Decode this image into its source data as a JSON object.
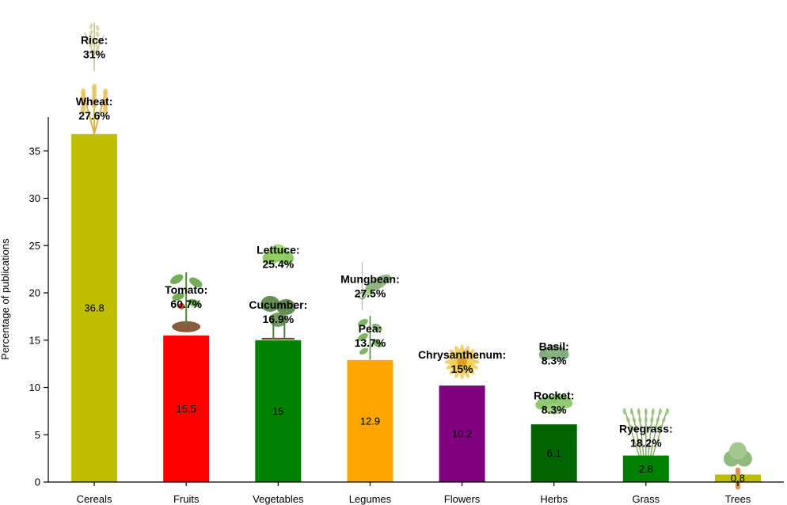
{
  "chart_data": {
    "type": "bar",
    "title": "",
    "xlabel": "",
    "ylabel": "Percentage of publications",
    "ylim": [
      0,
      38.5
    ],
    "yticks": [
      0,
      5,
      10,
      15,
      20,
      25,
      30,
      35
    ],
    "grid": false,
    "categories": [
      "Cereals",
      "Fruits",
      "Vegetables",
      "Legumes",
      "Flowers",
      "Herbs",
      "Grass",
      "Trees"
    ],
    "values": [
      36.8,
      15.5,
      15,
      12.9,
      10.2,
      6.1,
      2.8,
      0.8
    ],
    "value_labels": [
      "36.8",
      "15.5",
      "15",
      "12.9",
      "10.2",
      "6.1",
      "2.8",
      "0.8"
    ],
    "colors": [
      "#bfbf00",
      "#ff0000",
      "#008000",
      "#ffa500",
      "#800080",
      "#006400",
      "#008000",
      "#bfbf00"
    ],
    "annotations": [
      {
        "category": "Cereals",
        "crop": "Wheat:",
        "pct": "27.6%",
        "icon": "wheat-icon",
        "y": 39.5
      },
      {
        "category": "Cereals",
        "crop": "Rice:",
        "pct": "31%",
        "icon": "rice-icon",
        "y": 46.0
      },
      {
        "category": "Fruits",
        "crop": "Tomato:",
        "pct": "60.7%",
        "icon": "tomato-plant-icon",
        "y": 19.6
      },
      {
        "category": "Vegetables",
        "crop": "Cucumber:",
        "pct": "16.9%",
        "icon": "cucumber-plant-icon",
        "y": 18.0
      },
      {
        "category": "Vegetables",
        "crop": "Lettuce:",
        "pct": "25.4%",
        "icon": "lettuce-icon",
        "y": 23.8
      },
      {
        "category": "Legumes",
        "crop": "Pea:",
        "pct": "13.7%",
        "icon": "pea-plant-icon",
        "y": 15.5
      },
      {
        "category": "Legumes",
        "crop": "Mungbean:",
        "pct": "27.5%",
        "icon": "mungbean-pod-icon",
        "y": 20.7
      },
      {
        "category": "Flowers",
        "crop": "Chrysanthenum:",
        "pct": "15%",
        "icon": "chrysanthemum-icon",
        "y": 12.7
      },
      {
        "category": "Herbs",
        "crop": "Rocket:",
        "pct": "8.3%",
        "icon": "rocket-leaf-icon",
        "y": 8.4
      },
      {
        "category": "Herbs",
        "crop": "Basil:",
        "pct": "8.3%",
        "icon": "basil-leaf-icon",
        "y": 13.6
      },
      {
        "category": "Grass",
        "crop": "Ryegrass:",
        "pct": "18.2%",
        "icon": "ryegrass-icon",
        "y": 4.9
      },
      {
        "category": "Trees",
        "crop": "",
        "pct": "",
        "icon": "tree-icon",
        "y": 2.8
      }
    ]
  }
}
